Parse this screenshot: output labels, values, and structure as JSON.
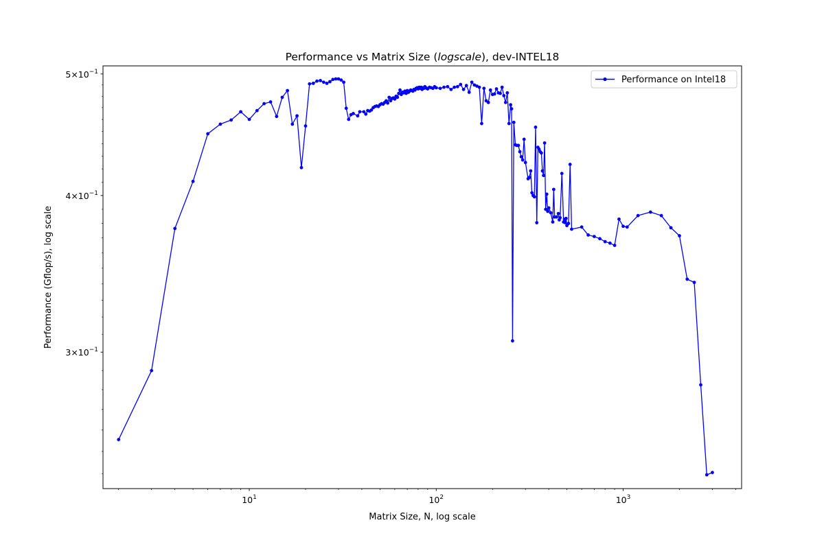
{
  "chart_data": {
    "type": "line",
    "title": "Performance vs Matrix Size (logscale), dev-INTEL18",
    "title_parts": {
      "before": "Performance vs Matrix Size (",
      "italic": "logscale",
      "after": "), dev-INTEL18"
    },
    "xlabel": "Matrix Size, N, log scale",
    "ylabel": "Performance (Gflop/s), log scale",
    "x_scale": "log",
    "y_scale": "log",
    "xlim": [
      1.65,
      4300
    ],
    "ylim": [
      0.2335,
      0.5075
    ],
    "x_ticks": [
      {
        "value": 10,
        "base": "10",
        "exp": "1"
      },
      {
        "value": 100,
        "base": "10",
        "exp": "2"
      },
      {
        "value": 1000,
        "base": "10",
        "exp": "3"
      }
    ],
    "y_ticks": [
      {
        "value": 0.3,
        "mant": "3",
        "base": "10",
        "exp": "−1"
      },
      {
        "value": 0.4,
        "mant": "4",
        "base": "10",
        "exp": "−1"
      },
      {
        "value": 0.5,
        "mant": "5",
        "base": "10",
        "exp": "−1"
      }
    ],
    "legend": {
      "position": "top-right"
    },
    "grid": false,
    "series": [
      {
        "name": "Performance on Intel18",
        "color": "#0000ff",
        "marker": "circle",
        "points": [
          [
            2,
            0.2555
          ],
          [
            3,
            0.29
          ],
          [
            4,
            0.3765
          ],
          [
            5,
            0.4105
          ],
          [
            6,
            0.448
          ],
          [
            7,
            0.456
          ],
          [
            8,
            0.4595
          ],
          [
            9,
            0.4665
          ],
          [
            10,
            0.46
          ],
          [
            11,
            0.4675
          ],
          [
            12,
            0.4735
          ],
          [
            13,
            0.475
          ],
          [
            14,
            0.4625
          ],
          [
            15,
            0.479
          ],
          [
            16,
            0.485
          ],
          [
            17,
            0.456
          ],
          [
            18,
            0.463
          ],
          [
            19,
            0.421
          ],
          [
            20,
            0.4545
          ],
          [
            21,
            0.491
          ],
          [
            22,
            0.4915
          ],
          [
            23,
            0.4935
          ],
          [
            24,
            0.494
          ],
          [
            25,
            0.4925
          ],
          [
            26,
            0.4915
          ],
          [
            27,
            0.493
          ],
          [
            28,
            0.495
          ],
          [
            29,
            0.4955
          ],
          [
            30,
            0.4955
          ],
          [
            31,
            0.4945
          ],
          [
            32,
            0.4925
          ],
          [
            33,
            0.4695
          ],
          [
            34,
            0.46
          ],
          [
            35,
            0.464
          ],
          [
            36,
            0.465
          ],
          [
            38,
            0.463
          ],
          [
            39,
            0.4665
          ],
          [
            41,
            0.4665
          ],
          [
            42,
            0.4645
          ],
          [
            43,
            0.4675
          ],
          [
            44,
            0.467
          ],
          [
            45,
            0.468
          ],
          [
            46,
            0.47
          ],
          [
            47,
            0.471
          ],
          [
            48,
            0.4715
          ],
          [
            49,
            0.471
          ],
          [
            50,
            0.4725
          ],
          [
            51,
            0.4735
          ],
          [
            52,
            0.473
          ],
          [
            53,
            0.4745
          ],
          [
            54,
            0.476
          ],
          [
            55,
            0.474
          ],
          [
            56,
            0.479
          ],
          [
            57,
            0.476
          ],
          [
            58,
            0.478
          ],
          [
            59,
            0.4785
          ],
          [
            60,
            0.4775
          ],
          [
            61,
            0.48
          ],
          [
            62,
            0.479
          ],
          [
            63,
            0.4825
          ],
          [
            64,
            0.4855
          ],
          [
            65,
            0.4815
          ],
          [
            66,
            0.4835
          ],
          [
            67,
            0.483
          ],
          [
            68,
            0.4845
          ],
          [
            69,
            0.4825
          ],
          [
            70,
            0.485
          ],
          [
            71,
            0.4835
          ],
          [
            72,
            0.4845
          ],
          [
            73,
            0.4855
          ],
          [
            74,
            0.485
          ],
          [
            75,
            0.4845
          ],
          [
            76,
            0.486
          ],
          [
            77,
            0.4855
          ],
          [
            78,
            0.487
          ],
          [
            79,
            0.4875
          ],
          [
            80,
            0.4865
          ],
          [
            81,
            0.488
          ],
          [
            82,
            0.487
          ],
          [
            83,
            0.488
          ],
          [
            84,
            0.486
          ],
          [
            85,
            0.4875
          ],
          [
            86,
            0.487
          ],
          [
            87,
            0.4885
          ],
          [
            88,
            0.4875
          ],
          [
            89,
            0.487
          ],
          [
            90,
            0.4865
          ],
          [
            92,
            0.488
          ],
          [
            94,
            0.4875
          ],
          [
            96,
            0.487
          ],
          [
            98,
            0.4885
          ],
          [
            100,
            0.4875
          ],
          [
            105,
            0.487
          ],
          [
            110,
            0.488
          ],
          [
            115,
            0.4885
          ],
          [
            120,
            0.486
          ],
          [
            125,
            0.488
          ],
          [
            130,
            0.4885
          ],
          [
            135,
            0.4905
          ],
          [
            140,
            0.486
          ],
          [
            145,
            0.4895
          ],
          [
            150,
            0.4835
          ],
          [
            155,
            0.4925
          ],
          [
            160,
            0.49
          ],
          [
            165,
            0.489
          ],
          [
            170,
            0.488
          ],
          [
            175,
            0.4565
          ],
          [
            180,
            0.487
          ],
          [
            185,
            0.476
          ],
          [
            190,
            0.4745
          ],
          [
            195,
            0.4855
          ],
          [
            200,
            0.4815
          ],
          [
            205,
            0.482
          ],
          [
            210,
            0.4865
          ],
          [
            215,
            0.483
          ],
          [
            220,
            0.4825
          ],
          [
            225,
            0.488
          ],
          [
            230,
            0.4805
          ],
          [
            235,
            0.4745
          ],
          [
            240,
            0.483
          ],
          [
            245,
            0.4565
          ],
          [
            250,
            0.4725
          ],
          [
            253,
            0.469
          ],
          [
            256,
            0.3063
          ],
          [
            260,
            0.4575
          ],
          [
            265,
            0.439
          ],
          [
            270,
            0.4385
          ],
          [
            275,
            0.4385
          ],
          [
            280,
            0.4335
          ],
          [
            285,
            0.4295
          ],
          [
            290,
            0.427
          ],
          [
            295,
            0.4435
          ],
          [
            300,
            0.425
          ],
          [
            310,
            0.4125
          ],
          [
            315,
            0.4135
          ],
          [
            320,
            0.4185
          ],
          [
            325,
            0.402
          ],
          [
            330,
            0.4
          ],
          [
            335,
            0.399
          ],
          [
            340,
            0.4535
          ],
          [
            345,
            0.3805
          ],
          [
            350,
            0.437
          ],
          [
            355,
            0.4355
          ],
          [
            360,
            0.4335
          ],
          [
            365,
            0.4325
          ],
          [
            370,
            0.4185
          ],
          [
            375,
            0.415
          ],
          [
            380,
            0.4405
          ],
          [
            385,
            0.39
          ],
          [
            390,
            0.401
          ],
          [
            395,
            0.3885
          ],
          [
            400,
            0.391
          ],
          [
            410,
            0.3875
          ],
          [
            420,
            0.381
          ],
          [
            425,
            0.4045
          ],
          [
            430,
            0.3845
          ],
          [
            440,
            0.3845
          ],
          [
            450,
            0.387
          ],
          [
            455,
            0.3825
          ],
          [
            460,
            0.384
          ],
          [
            470,
            0.4165
          ],
          [
            480,
            0.381
          ],
          [
            485,
            0.383
          ],
          [
            490,
            0.3805
          ],
          [
            495,
            0.3835
          ],
          [
            500,
            0.3785
          ],
          [
            510,
            0.38
          ],
          [
            520,
            0.4235
          ],
          [
            530,
            0.376
          ],
          [
            600,
            0.3775
          ],
          [
            650,
            0.372
          ],
          [
            700,
            0.371
          ],
          [
            750,
            0.3695
          ],
          [
            800,
            0.3675
          ],
          [
            850,
            0.3665
          ],
          [
            900,
            0.365
          ],
          [
            950,
            0.383
          ],
          [
            1000,
            0.378
          ],
          [
            1050,
            0.3775
          ],
          [
            1200,
            0.3855
          ],
          [
            1400,
            0.388
          ],
          [
            1600,
            0.3855
          ],
          [
            1800,
            0.377
          ],
          [
            2000,
            0.3715
          ],
          [
            2200,
            0.343
          ],
          [
            2400,
            0.341
          ],
          [
            2600,
            0.2825
          ],
          [
            2800,
            0.2395
          ],
          [
            3000,
            0.2405
          ]
        ]
      }
    ]
  }
}
